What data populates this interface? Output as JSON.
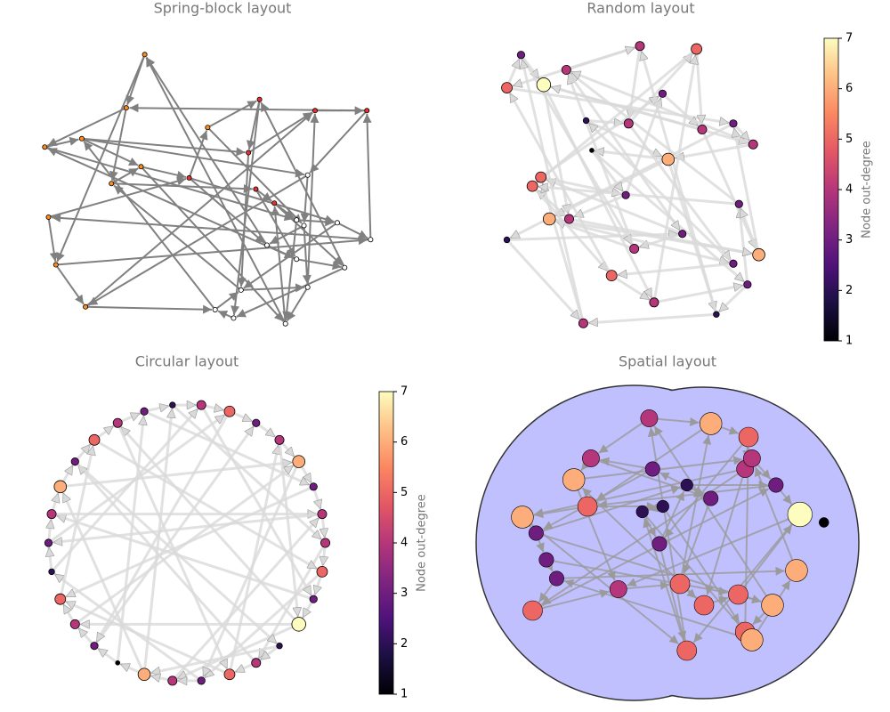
{
  "chart_data": [
    {
      "type": "network",
      "title": "Spring-block layout",
      "xlim": [
        0,
        100
      ],
      "ylim": [
        0,
        100
      ],
      "x": [
        29,
        24,
        2,
        12,
        3,
        5,
        13,
        20,
        28,
        41,
        46,
        60,
        57,
        75,
        59,
        64,
        70,
        81,
        90,
        89,
        73,
        72,
        62,
        70,
        83,
        53,
        48,
        55,
        73,
        67
      ],
      "y": [
        2,
        21,
        35,
        32,
        60,
        77,
        92,
        48,
        42,
        46,
        28,
        18,
        37,
        22,
        50,
        55,
        61,
        62,
        68,
        22,
        45,
        63,
        70,
        75,
        78,
        96,
        93,
        86,
        85,
        98
      ],
      "node_colors": [
        "#ff8c1a",
        "#ff8c1a",
        "#ff8c1a",
        "#ff8c1a",
        "#ff8c1a",
        "#ff8c1a",
        "#ff8c1a",
        "#ff8c1a",
        "#ff8c1a",
        "#e8302f",
        "#ff8c1a",
        "#e8302f",
        "#e8302f",
        "#e8302f",
        "#e8302f",
        "#e8302f",
        "#ffffff",
        "#ffffff",
        "#ffffff",
        "#e8302f",
        "#ffffff",
        "#ffffff",
        "#ffffff",
        "#ffffff",
        "#ffffff",
        "#ffffff",
        "#ffffff",
        "#ffffff",
        "#ffffff",
        "#ffffff"
      ],
      "edge_color": "#808080",
      "edges": [
        [
          0,
          1
        ],
        [
          0,
          5
        ],
        [
          1,
          2
        ],
        [
          1,
          7
        ],
        [
          2,
          3
        ],
        [
          3,
          8
        ],
        [
          3,
          12
        ],
        [
          3,
          20
        ],
        [
          4,
          5
        ],
        [
          4,
          9
        ],
        [
          5,
          6
        ],
        [
          6,
          13
        ],
        [
          7,
          8
        ],
        [
          7,
          14
        ],
        [
          8,
          9
        ],
        [
          9,
          10
        ],
        [
          9,
          17
        ],
        [
          9,
          22
        ],
        [
          10,
          11
        ],
        [
          11,
          12
        ],
        [
          11,
          25
        ],
        [
          12,
          13
        ],
        [
          13,
          19
        ],
        [
          14,
          15
        ],
        [
          15,
          16
        ],
        [
          15,
          24
        ],
        [
          16,
          17
        ],
        [
          17,
          18
        ],
        [
          17,
          27
        ],
        [
          18,
          19
        ],
        [
          19,
          20
        ],
        [
          20,
          21
        ],
        [
          21,
          22
        ],
        [
          21,
          28
        ],
        [
          22,
          23
        ],
        [
          23,
          24
        ],
        [
          24,
          25
        ],
        [
          25,
          26
        ],
        [
          26,
          27
        ],
        [
          27,
          28
        ],
        [
          28,
          29
        ],
        [
          29,
          0
        ],
        [
          2,
          16
        ],
        [
          5,
          18
        ],
        [
          6,
          26
        ],
        [
          8,
          29
        ],
        [
          10,
          21
        ],
        [
          12,
          27
        ],
        [
          14,
          23
        ],
        [
          16,
          29
        ],
        [
          18,
          4
        ],
        [
          19,
          1
        ],
        [
          20,
          6
        ],
        [
          23,
          2
        ],
        [
          24,
          11
        ],
        [
          26,
          3
        ],
        [
          27,
          7
        ],
        [
          28,
          13
        ],
        [
          29,
          15
        ],
        [
          22,
          0
        ]
      ]
    },
    {
      "type": "network",
      "title": "Random layout",
      "xlim": [
        0,
        100
      ],
      "ylim": [
        0,
        100
      ],
      "x": [
        50,
        3,
        8,
        16,
        31,
        46,
        70,
        83,
        90,
        60,
        33,
        45,
        25,
        12,
        3,
        65,
        48,
        18,
        83,
        40,
        55,
        88,
        77,
        30,
        15,
        58,
        72,
        92,
        85,
        24
      ],
      "y": [
        2,
        16,
        5,
        15,
        27,
        28,
        3,
        28,
        35,
        40,
        37,
        52,
        60,
        49,
        67,
        65,
        70,
        60,
        75,
        79,
        88,
        82,
        92,
        95,
        46,
        18,
        30,
        72,
        55,
        10
      ],
      "degree": [
        4,
        5,
        3,
        7,
        2,
        4,
        5,
        3,
        4,
        6,
        1,
        3,
        4,
        5,
        2,
        3,
        4,
        6,
        3,
        5,
        4,
        3,
        2,
        4,
        5,
        3,
        4,
        6,
        3,
        4
      ],
      "edge_color": "#d9d9d9",
      "edges": [
        [
          0,
          1
        ],
        [
          0,
          5
        ],
        [
          1,
          2
        ],
        [
          1,
          7
        ],
        [
          2,
          3
        ],
        [
          3,
          8
        ],
        [
          3,
          12
        ],
        [
          3,
          20
        ],
        [
          4,
          5
        ],
        [
          4,
          9
        ],
        [
          5,
          6
        ],
        [
          6,
          13
        ],
        [
          7,
          8
        ],
        [
          7,
          14
        ],
        [
          8,
          9
        ],
        [
          9,
          10
        ],
        [
          9,
          17
        ],
        [
          9,
          22
        ],
        [
          10,
          11
        ],
        [
          11,
          12
        ],
        [
          11,
          25
        ],
        [
          12,
          13
        ],
        [
          13,
          19
        ],
        [
          14,
          15
        ],
        [
          15,
          16
        ],
        [
          15,
          24
        ],
        [
          16,
          17
        ],
        [
          17,
          18
        ],
        [
          17,
          27
        ],
        [
          18,
          19
        ],
        [
          19,
          20
        ],
        [
          20,
          21
        ],
        [
          21,
          22
        ],
        [
          21,
          28
        ],
        [
          22,
          23
        ],
        [
          23,
          24
        ],
        [
          24,
          25
        ],
        [
          25,
          26
        ],
        [
          26,
          27
        ],
        [
          27,
          28
        ],
        [
          28,
          29
        ],
        [
          29,
          0
        ],
        [
          2,
          16
        ],
        [
          5,
          18
        ],
        [
          6,
          26
        ],
        [
          8,
          29
        ],
        [
          10,
          21
        ],
        [
          12,
          27
        ],
        [
          14,
          23
        ],
        [
          16,
          29
        ],
        [
          18,
          4
        ],
        [
          19,
          1
        ],
        [
          20,
          6
        ],
        [
          23,
          2
        ],
        [
          24,
          11
        ],
        [
          26,
          3
        ],
        [
          27,
          7
        ],
        [
          28,
          13
        ],
        [
          29,
          15
        ],
        [
          22,
          0
        ]
      ],
      "colorbar": {
        "label": "Node out-degree",
        "ylim": [
          1,
          7
        ],
        "yticks": [
          1,
          2,
          3,
          4,
          5,
          6,
          7
        ]
      }
    },
    {
      "type": "network",
      "title": "Circular layout",
      "xlim": [
        0,
        100
      ],
      "ylim": [
        0,
        100
      ],
      "x": [
        98,
        96.9,
        93.9,
        88.8,
        82.1,
        74,
        64.8,
        55,
        45,
        35.2,
        26,
        17.9,
        11.2,
        6.1,
        3.1,
        2,
        3.1,
        6.1,
        11.2,
        17.9,
        26,
        35.2,
        45,
        55,
        64.8,
        74,
        82.1,
        88.8,
        93.9,
        96.9
      ],
      "y": [
        50,
        60,
        69.5,
        78.2,
        85.7,
        91.6,
        95.6,
        97.8,
        97.8,
        95.6,
        91.6,
        85.7,
        78.2,
        69.5,
        60,
        50,
        40,
        30.5,
        21.8,
        14.3,
        8.4,
        4.4,
        2.2,
        2.2,
        4.4,
        8.4,
        14.3,
        21.8,
        30.5,
        40
      ],
      "degree": [
        4,
        5,
        3,
        7,
        2,
        4,
        5,
        3,
        4,
        6,
        1,
        3,
        4,
        5,
        2,
        3,
        4,
        6,
        3,
        5,
        4,
        3,
        2,
        4,
        5,
        3,
        4,
        6,
        3,
        4
      ],
      "edge_color": "#d9d9d9",
      "edges": [
        [
          0,
          1
        ],
        [
          0,
          5
        ],
        [
          1,
          2
        ],
        [
          1,
          7
        ],
        [
          2,
          3
        ],
        [
          3,
          8
        ],
        [
          3,
          12
        ],
        [
          3,
          20
        ],
        [
          4,
          5
        ],
        [
          4,
          9
        ],
        [
          5,
          6
        ],
        [
          6,
          13
        ],
        [
          7,
          8
        ],
        [
          7,
          14
        ],
        [
          8,
          9
        ],
        [
          9,
          10
        ],
        [
          9,
          17
        ],
        [
          9,
          22
        ],
        [
          10,
          11
        ],
        [
          11,
          12
        ],
        [
          11,
          25
        ],
        [
          12,
          13
        ],
        [
          13,
          19
        ],
        [
          14,
          15
        ],
        [
          15,
          16
        ],
        [
          15,
          24
        ],
        [
          16,
          17
        ],
        [
          17,
          18
        ],
        [
          17,
          27
        ],
        [
          18,
          19
        ],
        [
          19,
          20
        ],
        [
          20,
          21
        ],
        [
          21,
          22
        ],
        [
          21,
          28
        ],
        [
          22,
          23
        ],
        [
          23,
          24
        ],
        [
          24,
          25
        ],
        [
          25,
          26
        ],
        [
          26,
          27
        ],
        [
          27,
          28
        ],
        [
          28,
          29
        ],
        [
          29,
          0
        ],
        [
          2,
          16
        ],
        [
          5,
          18
        ],
        [
          6,
          26
        ],
        [
          8,
          29
        ],
        [
          10,
          21
        ],
        [
          12,
          27
        ],
        [
          14,
          23
        ],
        [
          16,
          29
        ],
        [
          18,
          4
        ],
        [
          19,
          1
        ],
        [
          20,
          6
        ],
        [
          23,
          2
        ],
        [
          24,
          11
        ],
        [
          26,
          3
        ],
        [
          27,
          7
        ],
        [
          28,
          13
        ],
        [
          29,
          15
        ],
        [
          22,
          0
        ]
      ],
      "colorbar": {
        "label": "Node out-degree",
        "ylim": [
          1,
          7
        ],
        "yticks": [
          1,
          2,
          3,
          4,
          5,
          6,
          7
        ]
      }
    },
    {
      "type": "network",
      "title": "Spatial layout",
      "xlim": [
        0,
        100
      ],
      "ylim": [
        0,
        100
      ],
      "x": [
        44,
        62,
        73,
        72,
        45,
        27,
        22,
        26,
        7,
        11,
        14,
        17,
        10,
        35,
        48,
        42,
        47,
        55,
        62,
        53,
        60,
        70,
        80,
        72,
        74,
        87,
        74,
        81,
        88,
        55,
        95
      ],
      "y": [
        5,
        7,
        12,
        24,
        24,
        20,
        28,
        38,
        42,
        48,
        58,
        65,
        77,
        69,
        38,
        40,
        52,
        30,
        35,
        67,
        75,
        71,
        75,
        85,
        88,
        62,
        20,
        30,
        41,
        92,
        44
      ],
      "degree": [
        4,
        6,
        5,
        4,
        3,
        4,
        6,
        5,
        6,
        3,
        3,
        3,
        5,
        4,
        2,
        2,
        3,
        2,
        3,
        5,
        5,
        5,
        6,
        5,
        6,
        6,
        4,
        3,
        7,
        5,
        1
      ],
      "edge_color": "#9a9a9a",
      "edges": [
        [
          0,
          1
        ],
        [
          0,
          5
        ],
        [
          1,
          2
        ],
        [
          1,
          7
        ],
        [
          2,
          3
        ],
        [
          3,
          8
        ],
        [
          3,
          12
        ],
        [
          3,
          20
        ],
        [
          4,
          5
        ],
        [
          4,
          9
        ],
        [
          5,
          6
        ],
        [
          6,
          13
        ],
        [
          7,
          8
        ],
        [
          7,
          14
        ],
        [
          8,
          9
        ],
        [
          9,
          10
        ],
        [
          9,
          17
        ],
        [
          9,
          22
        ],
        [
          10,
          11
        ],
        [
          11,
          12
        ],
        [
          11,
          25
        ],
        [
          12,
          13
        ],
        [
          13,
          19
        ],
        [
          14,
          15
        ],
        [
          15,
          16
        ],
        [
          15,
          24
        ],
        [
          16,
          17
        ],
        [
          17,
          18
        ],
        [
          17,
          27
        ],
        [
          18,
          19
        ],
        [
          19,
          20
        ],
        [
          20,
          21
        ],
        [
          21,
          22
        ],
        [
          21,
          28
        ],
        [
          22,
          23
        ],
        [
          23,
          24
        ],
        [
          24,
          25
        ],
        [
          25,
          26
        ],
        [
          26,
          27
        ],
        [
          27,
          28
        ],
        [
          28,
          29
        ],
        [
          29,
          0
        ],
        [
          2,
          16
        ],
        [
          5,
          18
        ],
        [
          6,
          26
        ],
        [
          8,
          29
        ],
        [
          10,
          21
        ],
        [
          12,
          27
        ],
        [
          14,
          23
        ],
        [
          16,
          29
        ],
        [
          18,
          4
        ],
        [
          19,
          1
        ],
        [
          20,
          6
        ],
        [
          23,
          2
        ],
        [
          24,
          11
        ],
        [
          26,
          3
        ],
        [
          27,
          7
        ],
        [
          28,
          13
        ],
        [
          29,
          15
        ],
        [
          22,
          0
        ]
      ]
    }
  ]
}
